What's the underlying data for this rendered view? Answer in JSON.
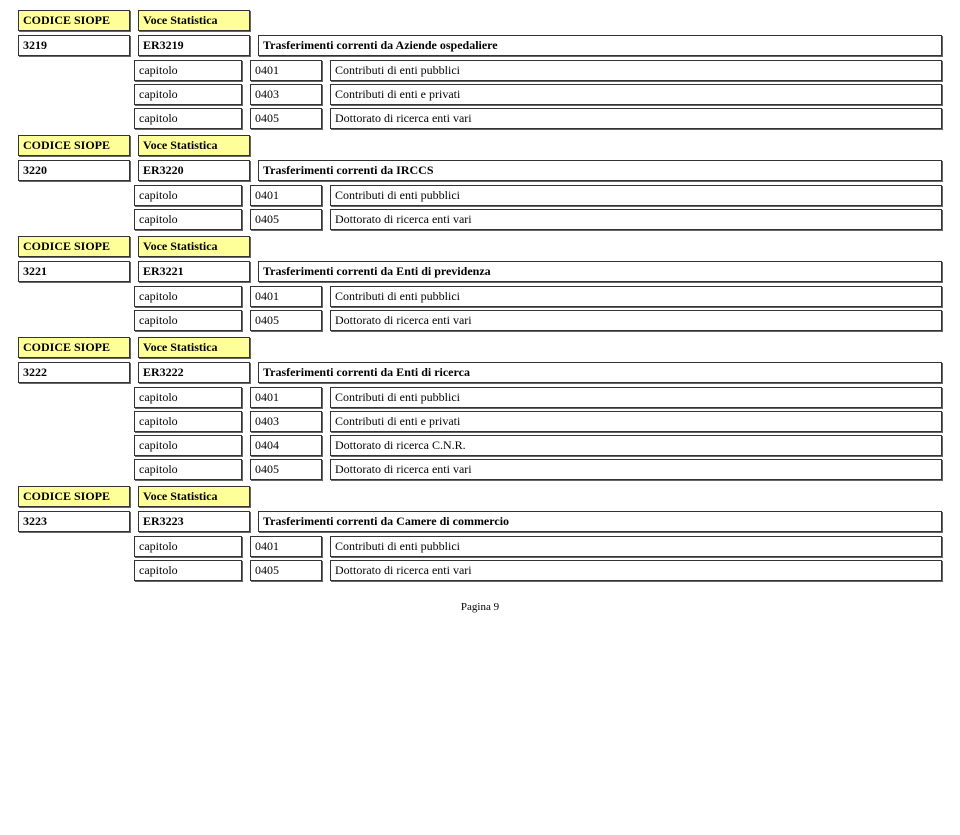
{
  "labels": {
    "codice": "CODICE SIOPE",
    "voce": "Voce Statistica",
    "capitolo": "capitolo",
    "spacer": ""
  },
  "sections": [
    {
      "code": "3219",
      "er": "ER3219",
      "desc": "Trasferimenti correnti da Aziende ospedaliere",
      "caps": [
        {
          "code": "0401",
          "desc": "Contributi di enti pubblici"
        },
        {
          "code": "0403",
          "desc": "Contributi di enti e privati"
        },
        {
          "code": "0405",
          "desc": "Dottorato di ricerca enti vari"
        }
      ]
    },
    {
      "code": "3220",
      "er": "ER3220",
      "desc": "Trasferimenti correnti da IRCCS",
      "caps": [
        {
          "code": "0401",
          "desc": "Contributi di enti pubblici"
        },
        {
          "code": "0405",
          "desc": "Dottorato di ricerca enti vari"
        }
      ]
    },
    {
      "code": "3221",
      "er": "ER3221",
      "desc": "Trasferimenti correnti da Enti di previdenza",
      "caps": [
        {
          "code": "0401",
          "desc": "Contributi di enti pubblici"
        },
        {
          "code": "0405",
          "desc": "Dottorato di ricerca enti vari"
        }
      ]
    },
    {
      "code": "3222",
      "er": "ER3222",
      "desc": "Trasferimenti correnti da Enti di ricerca",
      "caps": [
        {
          "code": "0401",
          "desc": "Contributi di enti pubblici"
        },
        {
          "code": "0403",
          "desc": "Contributi di enti e privati"
        },
        {
          "code": "0404",
          "desc": "Dottorato di ricerca C.N.R."
        },
        {
          "code": "0405",
          "desc": "Dottorato di ricerca enti vari"
        }
      ]
    },
    {
      "code": "3223",
      "er": "ER3223",
      "desc": "Trasferimenti correnti da Camere di commercio",
      "caps": [
        {
          "code": "0401",
          "desc": "Contributi di enti pubblici"
        },
        {
          "code": "0405",
          "desc": "Dottorato di ricerca enti vari"
        }
      ]
    }
  ],
  "footer": "Pagina 9"
}
